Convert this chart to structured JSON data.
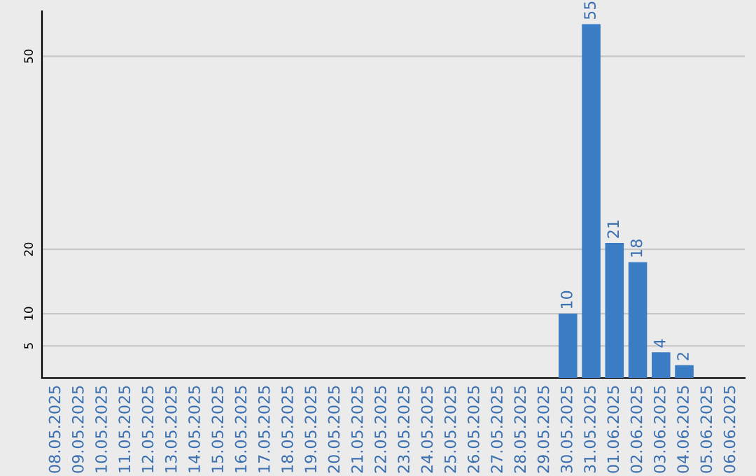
{
  "chart_data": {
    "type": "bar",
    "categories": [
      "08.05.2025",
      "09.05.2025",
      "10.05.2025",
      "11.05.2025",
      "12.05.2025",
      "13.05.2025",
      "14.05.2025",
      "15.05.2025",
      "16.05.2025",
      "17.05.2025",
      "18.05.2025",
      "19.05.2025",
      "20.05.2025",
      "21.05.2025",
      "22.05.2025",
      "23.05.2025",
      "24.05.2025",
      "25.05.2025",
      "26.05.2025",
      "27.05.2025",
      "28.05.2025",
      "29.05.2025",
      "30.05.2025",
      "31.05.2025",
      "01.06.2025",
      "02.06.2025",
      "03.06.2025",
      "04.06.2025",
      "05.06.2025",
      "06.06.2025"
    ],
    "values": [
      0,
      0,
      0,
      0,
      0,
      0,
      0,
      0,
      0,
      0,
      0,
      0,
      0,
      0,
      0,
      0,
      0,
      0,
      0,
      0,
      0,
      0,
      10,
      55,
      21,
      18,
      4,
      2,
      0,
      0
    ],
    "value_labels": [
      null,
      null,
      null,
      null,
      null,
      null,
      null,
      null,
      null,
      null,
      null,
      null,
      null,
      null,
      null,
      null,
      null,
      null,
      null,
      null,
      null,
      null,
      "10",
      "55",
      "21",
      "18",
      "4",
      "2",
      null,
      null
    ],
    "color": "#3a7dc5",
    "ylim": [
      0,
      57
    ],
    "yticks": [
      5,
      10,
      20,
      50
    ],
    "grid": "y"
  }
}
